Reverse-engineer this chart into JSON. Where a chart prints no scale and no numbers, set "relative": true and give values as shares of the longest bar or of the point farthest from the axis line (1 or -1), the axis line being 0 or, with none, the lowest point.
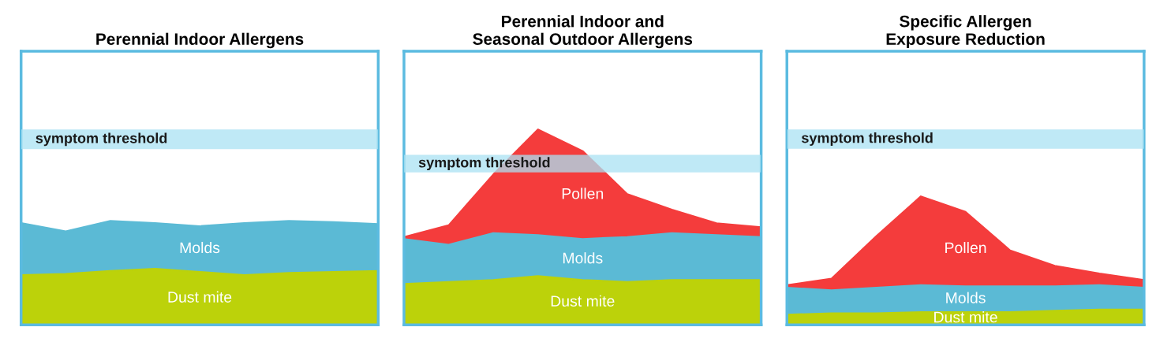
{
  "chart_data": [
    {
      "type": "area",
      "title": "Perennial Indoor Allergens",
      "stacked": true,
      "relative": true,
      "categories": [
        null,
        null,
        null,
        null,
        null,
        null,
        null,
        null,
        null
      ],
      "series": [
        {
          "name": "Dust mite",
          "color": "#bcd20a",
          "values": [
            0.48,
            0.49,
            0.52,
            0.54,
            0.51,
            0.48,
            0.5,
            0.51,
            0.52
          ]
        },
        {
          "name": "Molds",
          "color": "#5bbad5",
          "values": [
            0.5,
            0.41,
            0.48,
            0.44,
            0.44,
            0.5,
            0.5,
            0.48,
            0.45
          ]
        }
      ],
      "bands": [
        {
          "axis": "y",
          "from": 1.69,
          "to": 1.88,
          "label": "symptom threshold",
          "color": "#a9e2f3"
        }
      ]
    },
    {
      "type": "area",
      "title": "Perennial Indoor and\nSeasonal Outdoor Allergens",
      "stacked": true,
      "relative": true,
      "categories": [
        null,
        null,
        null,
        null,
        null,
        null,
        null,
        null,
        null
      ],
      "series": [
        {
          "name": "Dust mite",
          "color": "#bcd20a",
          "values": [
            0.21,
            0.22,
            0.23,
            0.25,
            0.23,
            0.22,
            0.23,
            0.23,
            0.23
          ]
        },
        {
          "name": "Molds",
          "color": "#5bbad5",
          "values": [
            0.23,
            0.19,
            0.24,
            0.21,
            0.21,
            0.23,
            0.24,
            0.23,
            0.22
          ]
        },
        {
          "name": "Pollen",
          "color": "#f43c3c",
          "values": [
            0.01,
            0.1,
            0.3,
            0.54,
            0.45,
            0.22,
            0.12,
            0.06,
            0.05
          ]
        }
      ],
      "bands": [
        {
          "axis": "y",
          "from": 0.78,
          "to": 0.87,
          "label": "symptom threshold",
          "color": "#a9e2f3"
        }
      ]
    },
    {
      "type": "area",
      "title": "Specific Allergen\nExposure Reduction",
      "stacked": true,
      "relative": true,
      "categories": [
        null,
        null,
        null,
        null,
        null,
        null,
        null,
        null,
        null
      ],
      "series": [
        {
          "name": "Dust mite",
          "color": "#bcd20a",
          "values": [
            0.08,
            0.09,
            0.09,
            0.1,
            0.1,
            0.1,
            0.11,
            0.12,
            0.12
          ]
        },
        {
          "name": "Molds",
          "color": "#5bbad5",
          "values": [
            0.21,
            0.18,
            0.2,
            0.21,
            0.2,
            0.2,
            0.19,
            0.19,
            0.17
          ]
        },
        {
          "name": "Pollen",
          "color": "#f43c3c",
          "values": [
            0.02,
            0.09,
            0.4,
            0.69,
            0.58,
            0.28,
            0.16,
            0.09,
            0.06
          ]
        }
      ],
      "bands": [
        {
          "axis": "y",
          "from": 1.37,
          "to": 1.52,
          "label": "symptom threshold",
          "color": "#a9e2f3"
        }
      ]
    }
  ]
}
